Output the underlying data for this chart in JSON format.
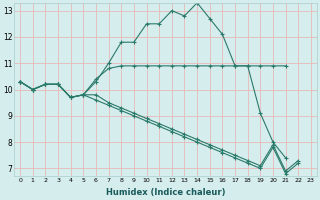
{
  "xlabel": "Humidex (Indice chaleur)",
  "bg_color": "#d6eded",
  "line_color": "#2a7a6a",
  "grid_color": "#e8b8b8",
  "xmin": -0.5,
  "xmax": 23.5,
  "ymin": 6.7,
  "ymax": 13.3,
  "lines": [
    {
      "x": [
        0,
        1,
        2,
        3,
        4,
        5,
        6,
        7,
        8,
        9,
        10,
        11,
        12,
        13,
        14,
        15,
        16,
        17,
        18,
        19,
        20,
        21
      ],
      "y": [
        10.3,
        10.0,
        10.2,
        10.2,
        9.7,
        9.8,
        10.3,
        11.0,
        11.8,
        11.8,
        12.5,
        12.5,
        13.0,
        12.8,
        13.3,
        12.7,
        12.1,
        10.9,
        10.9,
        10.9,
        10.9,
        10.9
      ]
    },
    {
      "x": [
        0,
        1,
        2,
        3,
        4,
        5,
        6,
        7,
        8,
        9,
        10,
        11,
        12,
        13,
        14,
        15,
        16,
        17,
        18,
        19,
        20,
        21
      ],
      "y": [
        10.3,
        10.0,
        10.2,
        10.2,
        9.7,
        9.8,
        10.4,
        10.8,
        10.9,
        10.9,
        10.9,
        10.9,
        10.9,
        10.9,
        10.9,
        10.9,
        10.9,
        10.9,
        10.9,
        9.1,
        8.0,
        7.4
      ]
    },
    {
      "x": [
        0,
        1,
        2,
        3,
        4,
        5,
        6,
        7,
        8,
        9,
        10,
        11,
        12,
        13,
        14,
        15,
        16,
        17,
        18,
        19,
        20,
        21,
        22
      ],
      "y": [
        10.3,
        10.0,
        10.2,
        10.2,
        9.7,
        9.8,
        9.8,
        9.5,
        9.3,
        9.1,
        8.9,
        8.7,
        8.5,
        8.3,
        8.1,
        7.9,
        7.7,
        7.5,
        7.3,
        7.1,
        7.9,
        6.9,
        7.3
      ]
    },
    {
      "x": [
        0,
        1,
        2,
        3,
        4,
        5,
        6,
        7,
        8,
        9,
        10,
        11,
        12,
        13,
        14,
        15,
        16,
        17,
        18,
        19,
        20,
        21,
        22
      ],
      "y": [
        10.3,
        10.0,
        10.2,
        10.2,
        9.7,
        9.8,
        9.6,
        9.4,
        9.2,
        9.0,
        8.8,
        8.6,
        8.4,
        8.2,
        8.0,
        7.8,
        7.6,
        7.4,
        7.2,
        7.0,
        7.8,
        6.8,
        7.2
      ]
    }
  ],
  "yticks": [
    7,
    8,
    9,
    10,
    11,
    12,
    13
  ],
  "xticks": [
    0,
    1,
    2,
    3,
    4,
    5,
    6,
    7,
    8,
    9,
    10,
    11,
    12,
    13,
    14,
    15,
    16,
    17,
    18,
    19,
    20,
    21,
    22,
    23
  ]
}
